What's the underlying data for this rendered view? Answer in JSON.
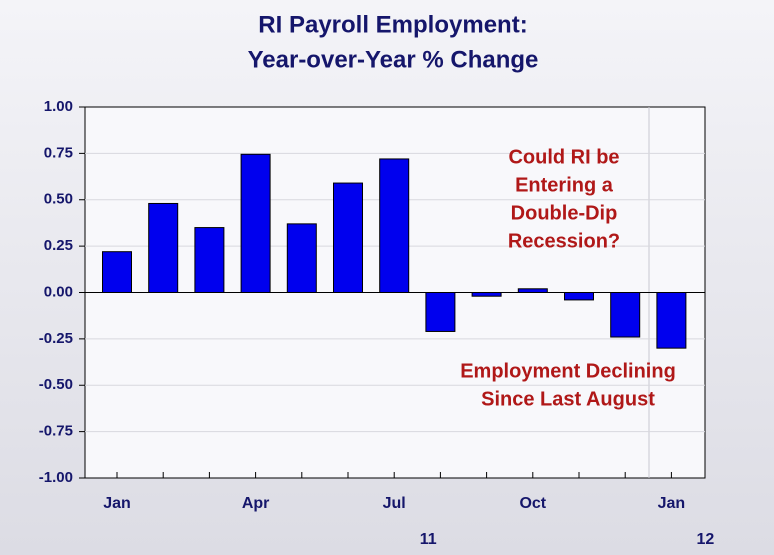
{
  "chart_data": {
    "type": "bar",
    "title": [
      "RI Payroll Employment:",
      "Year-over-Year % Change"
    ],
    "categories": [
      "Jan",
      null,
      null,
      "Apr",
      null,
      null,
      "Jul",
      null,
      null,
      "Oct",
      null,
      null,
      "Jan"
    ],
    "category_years": [
      null,
      null,
      null,
      null,
      null,
      null,
      "11",
      null,
      null,
      null,
      null,
      null,
      "12"
    ],
    "values": [
      0.22,
      0.48,
      0.35,
      0.745,
      0.37,
      0.59,
      0.72,
      -0.21,
      -0.02,
      0.02,
      -0.04,
      -0.24,
      -0.3
    ],
    "color": "#0000ee",
    "ylim": [
      -1,
      1
    ],
    "yticks": [
      {
        "value": -1,
        "label": "-1.00"
      },
      {
        "value": -0.75,
        "label": "-0.75"
      },
      {
        "value": -0.5,
        "label": "-0.50"
      },
      {
        "value": -0.25,
        "label": "-0.25"
      },
      {
        "value": 0,
        "label": "0.00"
      },
      {
        "value": 0.25,
        "label": "0.25"
      },
      {
        "value": 0.5,
        "label": "0.50"
      },
      {
        "value": 0.75,
        "label": "0.75"
      },
      {
        "value": 1,
        "label": "1.00"
      }
    ],
    "grid": true,
    "annotations": [
      [
        "Could RI be",
        "Entering a",
        "Double-Dip",
        "Recession?"
      ],
      [
        "Employment Declining",
        "Since Last August"
      ]
    ]
  }
}
